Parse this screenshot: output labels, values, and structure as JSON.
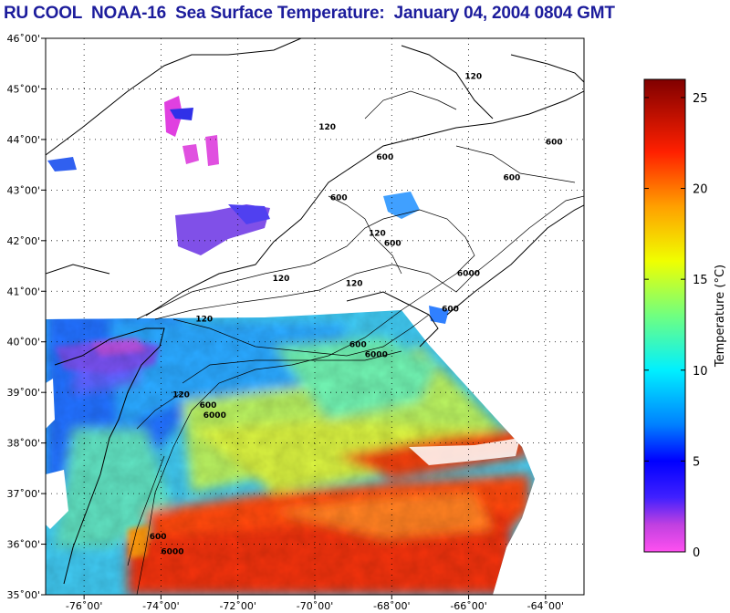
{
  "title": "RU COOL  NOAA-16  Sea Surface Temperature:  January 04, 2004 0804 GMT",
  "map": {
    "lon_range": [
      -77,
      -63
    ],
    "lat_range": [
      35,
      46
    ],
    "lon_ticks": [
      {
        "value": -76,
        "label": "-76˚00'"
      },
      {
        "value": -74,
        "label": "-74˚00'"
      },
      {
        "value": -72,
        "label": "-72˚00'"
      },
      {
        "value": -70,
        "label": "-70˚00'"
      },
      {
        "value": -68,
        "label": "-68˚00'"
      },
      {
        "value": -66,
        "label": "-66˚00'"
      },
      {
        "value": -64,
        "label": "-64˚00'"
      }
    ],
    "lat_ticks": [
      {
        "value": 46,
        "label": "46˚00'"
      },
      {
        "value": 45,
        "label": "45˚00'"
      },
      {
        "value": 44,
        "label": "44˚00'"
      },
      {
        "value": 43,
        "label": "43˚00'"
      },
      {
        "value": 42,
        "label": "42˚00'"
      },
      {
        "value": 41,
        "label": "41˚00'"
      },
      {
        "value": 40,
        "label": "40˚00'"
      },
      {
        "value": 39,
        "label": "39˚00'"
      },
      {
        "value": 38,
        "label": "38˚00'"
      },
      {
        "value": 37,
        "label": "37˚00'"
      },
      {
        "value": 36,
        "label": "36˚00'"
      },
      {
        "value": 35,
        "label": "35˚00'"
      }
    ],
    "grid": "dotted",
    "contours": [
      {
        "label": "120",
        "lon": -66.1,
        "lat": 45.2
      },
      {
        "label": "120",
        "lon": -69.9,
        "lat": 44.2
      },
      {
        "label": "600",
        "lon": -68.4,
        "lat": 43.6
      },
      {
        "label": "600",
        "lon": -69.6,
        "lat": 42.8
      },
      {
        "label": "120",
        "lon": -68.6,
        "lat": 42.1
      },
      {
        "label": "600",
        "lon": -68.2,
        "lat": 41.9
      },
      {
        "label": "6000",
        "lon": -66.3,
        "lat": 41.3
      },
      {
        "label": "600",
        "lon": -66.7,
        "lat": 40.6
      },
      {
        "label": "120",
        "lon": -71.1,
        "lat": 41.2
      },
      {
        "label": "120",
        "lon": -69.2,
        "lat": 41.1
      },
      {
        "label": "120",
        "lon": -73.1,
        "lat": 40.4
      },
      {
        "label": "600",
        "lon": -69.1,
        "lat": 39.9
      },
      {
        "label": "6000",
        "lon": -68.7,
        "lat": 39.7
      },
      {
        "label": "120",
        "lon": -73.7,
        "lat": 38.9
      },
      {
        "label": "600",
        "lon": -73.0,
        "lat": 38.7
      },
      {
        "label": "6000",
        "lon": -72.9,
        "lat": 38.5
      },
      {
        "label": "600",
        "lon": -74.3,
        "lat": 36.1
      },
      {
        "label": "6000",
        "lon": -74.0,
        "lat": 35.8
      },
      {
        "label": "600",
        "lon": -64.0,
        "lat": 43.9
      },
      {
        "label": "600",
        "lon": -65.1,
        "lat": 43.2
      }
    ]
  },
  "colorbar": {
    "label": "Temperature (°C)",
    "min": 0,
    "max": 26,
    "ticks": [
      {
        "value": 0,
        "label": "0"
      },
      {
        "value": 5,
        "label": "5"
      },
      {
        "value": 10,
        "label": "10"
      },
      {
        "value": 15,
        "label": "15"
      },
      {
        "value": 20,
        "label": "20"
      },
      {
        "value": 25,
        "label": "25"
      }
    ],
    "stops": [
      {
        "value": 0,
        "color": "#ff50f0"
      },
      {
        "value": 1.5,
        "color": "#c040e0"
      },
      {
        "value": 3,
        "color": "#4020ff"
      },
      {
        "value": 5,
        "color": "#0000ff"
      },
      {
        "value": 7,
        "color": "#0080ff"
      },
      {
        "value": 10,
        "color": "#00f0ff"
      },
      {
        "value": 13,
        "color": "#70ff80"
      },
      {
        "value": 16,
        "color": "#f0ff00"
      },
      {
        "value": 19,
        "color": "#ffa000"
      },
      {
        "value": 22,
        "color": "#ff2000"
      },
      {
        "value": 26,
        "color": "#800000"
      }
    ]
  }
}
